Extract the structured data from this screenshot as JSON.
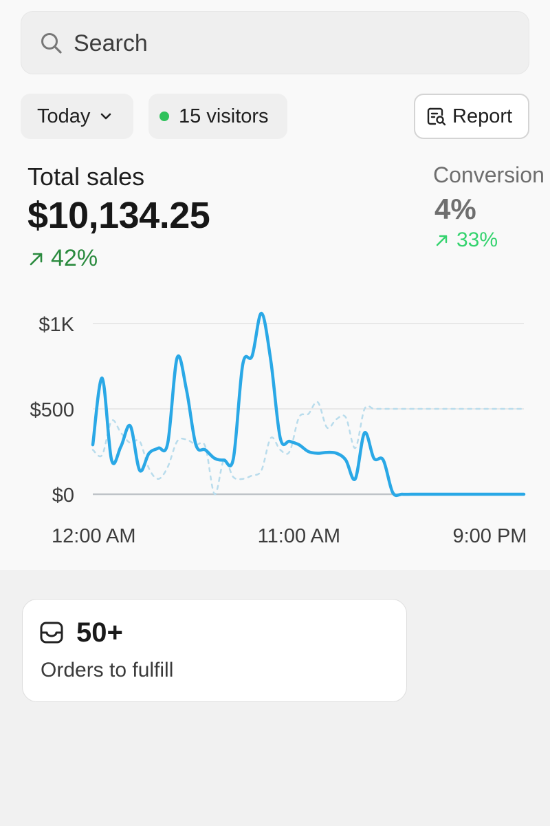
{
  "search": {
    "placeholder": "Search",
    "icon": "search-icon"
  },
  "filters": {
    "date_range_label": "Today",
    "visitors_label": "15 visitors",
    "visitors_dot_color": "#2fc25b",
    "report_label": "Report"
  },
  "sales": {
    "label": "Total sales",
    "value": "$10,134.25",
    "change": "42%",
    "change_color": "#2a8a3e"
  },
  "conversion": {
    "label": "Conversion",
    "value": "4%",
    "change": "33%",
    "change_color": "#34d36e"
  },
  "chart_data": {
    "type": "line",
    "y_ticks": [
      "$1K",
      "$500",
      "$0"
    ],
    "y_tick_values": [
      1000,
      500,
      0
    ],
    "x_ticks": [
      "12:00 AM",
      "11:00 AM",
      "9:00 PM"
    ],
    "x_tick_values": [
      0,
      11,
      21
    ],
    "ylim": [
      0,
      1000
    ],
    "xlim": [
      0,
      23
    ],
    "grid": true,
    "series": [
      {
        "style": "solid",
        "color": "#2aa8e6",
        "x": [
          0,
          0.5,
          1,
          1.5,
          2,
          2.5,
          3,
          3.5,
          4,
          4.5,
          5,
          5.5,
          6,
          6.5,
          7,
          7.5,
          8,
          8.5,
          9,
          9.5,
          10,
          10.5,
          11,
          11.5,
          12,
          12.5,
          13,
          13.5,
          14,
          14.5,
          15,
          15.5,
          16,
          16.5,
          17,
          17.5,
          18,
          18.5,
          19,
          19.5,
          20,
          20.5,
          21,
          21.5,
          22,
          22.5,
          23
        ],
        "values": [
          290,
          680,
          200,
          280,
          400,
          140,
          240,
          270,
          300,
          800,
          610,
          290,
          260,
          210,
          200,
          210,
          760,
          810,
          1060,
          780,
          330,
          310,
          290,
          250,
          240,
          245,
          240,
          200,
          90,
          360,
          210,
          200,
          10,
          0,
          0,
          0,
          0,
          0,
          0,
          0,
          0,
          0,
          0,
          0,
          0,
          0,
          0
        ]
      },
      {
        "style": "dashed",
        "color": "#b9dcec",
        "x": [
          0,
          0.5,
          1,
          1.5,
          2,
          2.5,
          3,
          3.5,
          4,
          4.5,
          5,
          5.5,
          6,
          6.5,
          7,
          7.5,
          8,
          8.5,
          9,
          9.5,
          10,
          10.5,
          11,
          11.5,
          12,
          12.5,
          13,
          13.5,
          14,
          14.5,
          15,
          15.5,
          16,
          16.5,
          17,
          17.5,
          18,
          18.5,
          19,
          19.5,
          20,
          20.5,
          21,
          21.5,
          22,
          22.5,
          23
        ],
        "values": [
          260,
          230,
          430,
          360,
          300,
          310,
          150,
          90,
          160,
          310,
          320,
          290,
          280,
          0,
          200,
          100,
          90,
          110,
          140,
          330,
          260,
          250,
          450,
          470,
          540,
          390,
          440,
          450,
          270,
          500,
          500,
          500,
          500,
          500,
          500,
          500,
          500,
          500,
          500,
          500,
          500,
          500,
          500,
          500,
          500,
          500,
          500
        ]
      }
    ]
  },
  "orders": {
    "count": "50+",
    "label": "Orders to fulfill",
    "icon": "inbox-icon"
  }
}
